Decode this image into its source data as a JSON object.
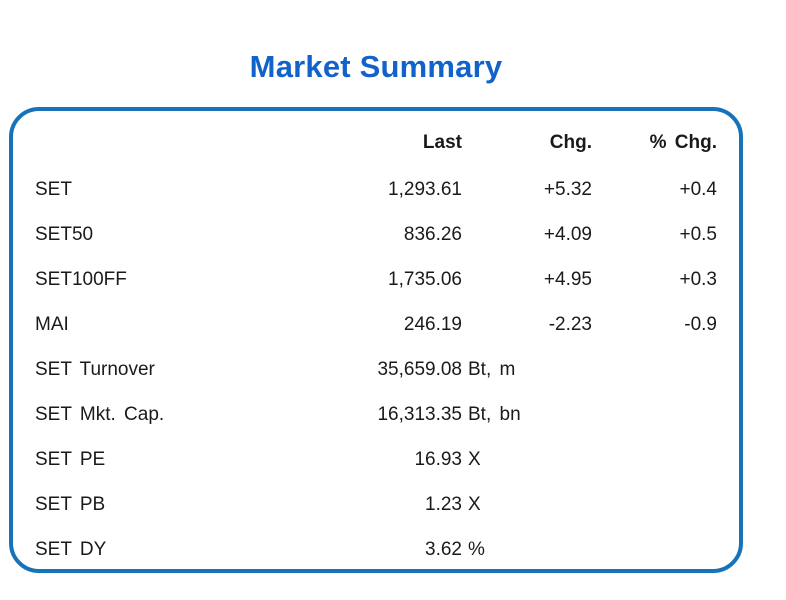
{
  "title": "Market Summary",
  "colors": {
    "title": "#1263c9",
    "border": "#1673b9",
    "text": "#1a1a1a"
  },
  "table": {
    "headers": {
      "last": "Last",
      "chg": "Chg.",
      "pct_chg": "% Chg."
    },
    "rows": [
      {
        "label": "SET",
        "last": "1,293.61",
        "unit": "",
        "chg": "+5.32",
        "pct_chg": "+0.4"
      },
      {
        "label": "SET50",
        "last": "836.26",
        "unit": "",
        "chg": "+4.09",
        "pct_chg": "+0.5"
      },
      {
        "label": "SET100FF",
        "last": "1,735.06",
        "unit": "",
        "chg": "+4.95",
        "pct_chg": "+0.3"
      },
      {
        "label": "MAI",
        "last": "246.19",
        "unit": "",
        "chg": "-2.23",
        "pct_chg": "-0.9"
      },
      {
        "label": "SET Turnover",
        "last": "35,659.08",
        "unit": "Bt, m",
        "chg": "",
        "pct_chg": ""
      },
      {
        "label": "SET Mkt. Cap.",
        "last": "16,313.35",
        "unit": "Bt, bn",
        "chg": "",
        "pct_chg": ""
      },
      {
        "label": "SET PE",
        "last": "16.93",
        "unit": "X",
        "chg": "",
        "pct_chg": ""
      },
      {
        "label": "SET PB",
        "last": "1.23",
        "unit": "X",
        "chg": "",
        "pct_chg": ""
      },
      {
        "label": "SET DY",
        "last": "3.62",
        "unit": "%",
        "chg": "",
        "pct_chg": ""
      }
    ]
  }
}
